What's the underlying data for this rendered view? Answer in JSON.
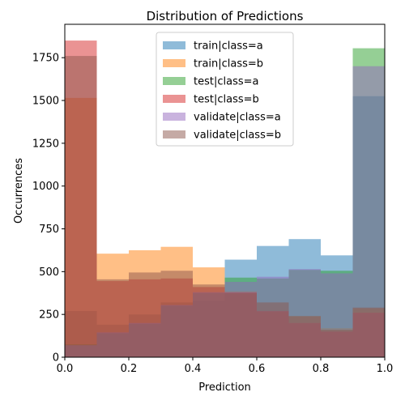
{
  "chart_data": {
    "type": "bar",
    "title": "Distribution of Predictions",
    "xlabel": "Prediction",
    "ylabel": "Occurrences",
    "xlim": [
      0.0,
      1.0
    ],
    "ylim": [
      0,
      1945
    ],
    "bin_edges": [
      0.0,
      0.1,
      0.2,
      0.3,
      0.4,
      0.5,
      0.6,
      0.7,
      0.8,
      0.9,
      1.0
    ],
    "x_ticks": [
      "0.0",
      "0.2",
      "0.4",
      "0.6",
      "0.8",
      "1.0"
    ],
    "y_ticks": [
      "0",
      "250",
      "500",
      "750",
      "1000",
      "1250",
      "1500",
      "1750"
    ],
    "legend_position": "top-center",
    "alpha": 0.5,
    "series": [
      {
        "name": "train|class=a",
        "color": "#1f77b4",
        "values": [
          270,
          190,
          250,
          320,
          330,
          570,
          650,
          690,
          595,
          1525
        ]
      },
      {
        "name": "train|class=b",
        "color": "#ff7f0e",
        "values": [
          1515,
          605,
          625,
          645,
          525,
          385,
          265,
          240,
          170,
          285
        ]
      },
      {
        "name": "test|class=a",
        "color": "#2ca02c",
        "values": [
          75,
          140,
          195,
          300,
          375,
          465,
          460,
          510,
          505,
          1805
        ]
      },
      {
        "name": "test|class=b",
        "color": "#d62728",
        "values": [
          1850,
          445,
          455,
          460,
          410,
          380,
          270,
          200,
          150,
          260
        ]
      },
      {
        "name": "validate|class=a",
        "color": "#9467bd",
        "values": [
          70,
          145,
          200,
          305,
          380,
          440,
          470,
          515,
          490,
          1700
        ]
      },
      {
        "name": "validate|class=b",
        "color": "#8c564b",
        "values": [
          1760,
          455,
          495,
          505,
          425,
          375,
          320,
          240,
          160,
          290
        ]
      }
    ]
  }
}
